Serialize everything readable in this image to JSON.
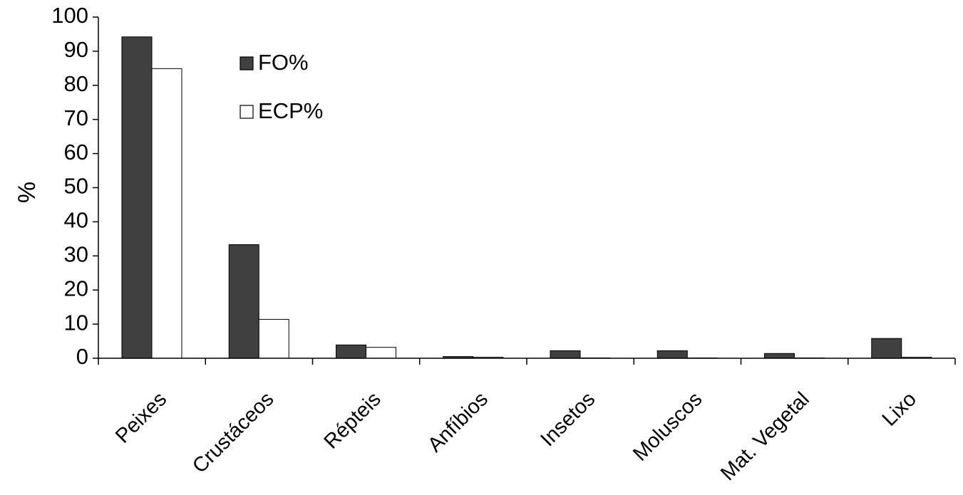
{
  "chart_data": {
    "type": "bar",
    "title": "",
    "xlabel": "",
    "ylabel": "%",
    "ylim": [
      0,
      100
    ],
    "yticks": [
      0,
      10,
      20,
      30,
      40,
      50,
      60,
      70,
      80,
      90,
      100
    ],
    "grid": false,
    "legend_position": "top-center",
    "categories": [
      "Peixes",
      "Crustáceos",
      "Répteis",
      "Anfíbios",
      "Insetos",
      "Moluscos",
      "Mat. Vegetal",
      "Lixo"
    ],
    "series": [
      {
        "name": "FO%",
        "color": "#404040",
        "values": [
          94.2,
          33.3,
          3.9,
          0.5,
          2.2,
          2.2,
          1.4,
          5.8
        ]
      },
      {
        "name": "ECP%",
        "color": "#ffffff",
        "values": [
          84.9,
          11.4,
          3.2,
          0.3,
          0.1,
          0.1,
          0.1,
          0.3
        ]
      }
    ]
  }
}
